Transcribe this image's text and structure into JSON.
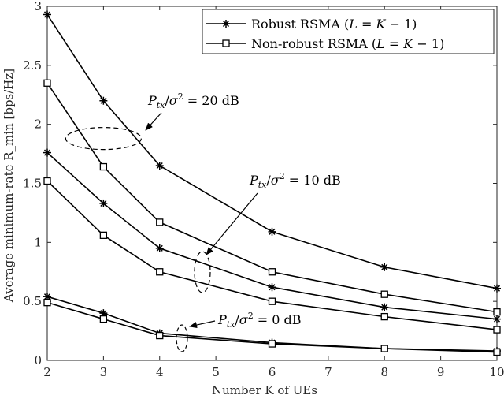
{
  "chart_data": {
    "type": "line",
    "xlabel": "Number K of UEs",
    "ylabel": "Average minimum-rate R_min [bps/Hz]",
    "xlim": [
      2,
      10
    ],
    "ylim": [
      0,
      3
    ],
    "xticks": [
      "2",
      "3",
      "4",
      "5",
      "6",
      "7",
      "8",
      "9",
      "10"
    ],
    "yticks": [
      "0",
      "0.5",
      "1",
      "1.5",
      "2",
      "2.5",
      "3"
    ],
    "x": [
      2,
      3,
      4,
      6,
      8,
      10
    ],
    "grid": false,
    "legend_position": "top-right",
    "series": [
      {
        "name": "Robust RSMA (L = K − 1)",
        "marker": "asterisk",
        "group": "P_tx/σ² = 20 dB",
        "values": [
          2.93,
          2.2,
          1.65,
          1.09,
          0.79,
          0.61
        ]
      },
      {
        "name": "Non-robust RSMA (L = K − 1)",
        "marker": "square",
        "group": "P_tx/σ² = 20 dB",
        "values": [
          2.35,
          1.64,
          1.17,
          0.75,
          0.56,
          0.41
        ]
      },
      {
        "name": "Robust RSMA (L = K − 1)",
        "marker": "asterisk",
        "group": "P_tx/σ² = 10 dB",
        "values": [
          1.76,
          1.33,
          0.95,
          0.62,
          0.45,
          0.35
        ]
      },
      {
        "name": "Non-robust RSMA (L = K − 1)",
        "marker": "square",
        "group": "P_tx/σ² = 10 dB",
        "values": [
          1.52,
          1.06,
          0.75,
          0.5,
          0.37,
          0.26
        ]
      },
      {
        "name": "Robust RSMA (L = K − 1)",
        "marker": "asterisk",
        "group": "P_tx/σ² = 0 dB",
        "values": [
          0.54,
          0.4,
          0.23,
          0.15,
          0.1,
          0.08
        ]
      },
      {
        "name": "Non-robust RSMA (L = K − 1)",
        "marker": "square",
        "group": "P_tx/σ² = 0 dB",
        "values": [
          0.49,
          0.35,
          0.21,
          0.14,
          0.1,
          0.07
        ]
      }
    ],
    "legend": {
      "robust_label": "Robust RSMA (L = K − 1)",
      "nonrobust_label": "Non-robust RSMA (L = K − 1)"
    },
    "annotations": [
      {
        "text": "P_tx/σ² = 20 dB",
        "group_x": 3,
        "group_y": 1.88,
        "label_x": 4.05,
        "label_y": 2.15
      },
      {
        "text": "P_tx/σ² = 10 dB",
        "group_x": 4.85,
        "group_y": 0.75,
        "label_x": 5.85,
        "label_y": 1.48
      },
      {
        "text": "P_tx/σ² = 0 dB",
        "group_x": 4.4,
        "group_y": 0.19,
        "label_x": 4.7,
        "label_y": 0.32
      }
    ]
  }
}
